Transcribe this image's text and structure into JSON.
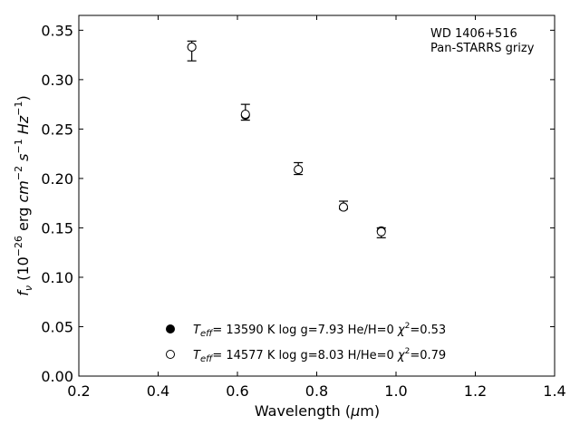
{
  "chart_data": {
    "type": "scatter",
    "title": "",
    "xlabel_main": "Wavelength (",
    "xlabel_mu": "μ",
    "xlabel_unit": "m)",
    "ylabel_parts": {
      "f": "f",
      "nu": "ν",
      "open": " (10",
      "exp1": "−26",
      "mid": " erg ",
      "cm": "cm",
      "exp2": "−2",
      "s": " s",
      "exp3": "−1",
      "hz": " Hz",
      "exp4": "−1",
      "close": ")"
    },
    "xlim": [
      0.2,
      1.4
    ],
    "ylim": [
      0.0,
      0.365
    ],
    "xticks": [
      "0.2",
      "0.4",
      "0.6",
      "0.8",
      "1.0",
      "1.2",
      "1.4"
    ],
    "xtick_values": [
      0.2,
      0.4,
      0.6,
      0.8,
      1.0,
      1.2,
      1.4
    ],
    "yticks": [
      "0.00",
      "0.05",
      "0.10",
      "0.15",
      "0.20",
      "0.25",
      "0.30",
      "0.35"
    ],
    "ytick_values": [
      0.0,
      0.05,
      0.1,
      0.15,
      0.2,
      0.25,
      0.3,
      0.35
    ],
    "annotation_lines": [
      "WD 1406+516",
      "Pan-STARRS grizy"
    ],
    "observed": {
      "x": [
        0.4849,
        0.6201,
        0.7535,
        0.8674,
        0.9628
      ],
      "y": [
        0.329,
        0.267,
        0.21,
        0.173,
        0.145
      ],
      "yerr": [
        0.01,
        0.008,
        0.006,
        0.004,
        0.005
      ]
    },
    "series": [
      {
        "name_t": "T",
        "name_sub": "eff",
        "name_rest": "= 13590 K  log g=7.93  He/H=0  ",
        "name_chi": "χ",
        "name_chi_exp": "2",
        "name_chi_val": "=0.53",
        "marker": "filled",
        "values": [
          0.333,
          0.264,
          0.209,
          0.171,
          0.147
        ]
      },
      {
        "name_t": "T",
        "name_sub": "eff",
        "name_rest": "= 14577 K  log g=8.03  H/He=0  ",
        "name_chi": "χ",
        "name_chi_exp": "2",
        "name_chi_val": "=0.79",
        "marker": "open",
        "values": [
          0.333,
          0.265,
          0.209,
          0.171,
          0.146
        ]
      }
    ],
    "grid": false,
    "legend_position": "lower-center"
  }
}
